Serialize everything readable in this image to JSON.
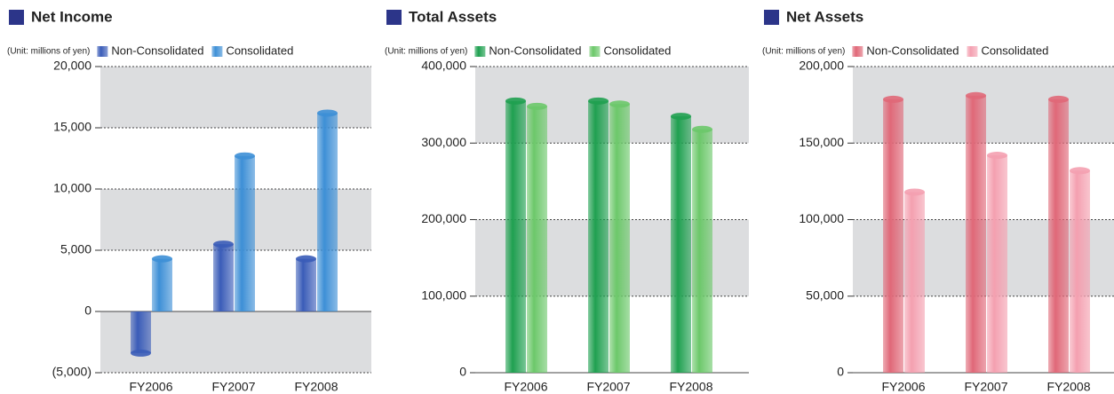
{
  "chart_data": [
    {
      "type": "bar",
      "title": "Net Income",
      "unit_label": "(Unit: millions of yen)",
      "categories": [
        "FY2006",
        "FY2007",
        "FY2008"
      ],
      "series": [
        {
          "name": "Non-Consolidated",
          "color": "#3a5cb8",
          "values": [
            -3400,
            5500,
            4300
          ]
        },
        {
          "name": "Consolidated",
          "color": "#3d8fd6",
          "values": [
            4300,
            12700,
            16200
          ]
        }
      ],
      "ylim": [
        -5000,
        20000
      ],
      "yticks": [
        {
          "value": -5000,
          "label": "(5,000)"
        },
        0,
        {
          "value": 5000,
          "label": "5,000"
        },
        {
          "value": 10000,
          "label": "10,000"
        },
        {
          "value": 15000,
          "label": "15,000"
        },
        {
          "value": 20000,
          "label": "20,000"
        }
      ],
      "grid": true
    },
    {
      "type": "bar",
      "title": "Total Assets",
      "unit_label": "(Unit: millions of yen)",
      "categories": [
        "FY2006",
        "FY2007",
        "FY2008"
      ],
      "series": [
        {
          "name": "Non-Consolidated",
          "color": "#1fa050",
          "values": [
            355000,
            355000,
            335000
          ]
        },
        {
          "name": "Consolidated",
          "color": "#6cc86a",
          "values": [
            348000,
            351000,
            318000
          ]
        }
      ],
      "ylim": [
        0,
        400000
      ],
      "yticks": [
        0,
        {
          "value": 100000,
          "label": "100,000"
        },
        {
          "value": 200000,
          "label": "200,000"
        },
        {
          "value": 300000,
          "label": "300,000"
        },
        {
          "value": 400000,
          "label": "400,000"
        }
      ],
      "grid": true
    },
    {
      "type": "bar",
      "title": "Net Assets",
      "unit_label": "(Unit: millions of yen)",
      "categories": [
        "FY2006",
        "FY2007",
        "FY2008"
      ],
      "series": [
        {
          "name": "Non-Consolidated",
          "color": "#e06878",
          "values": [
            178600,
            181000,
            178600
          ]
        },
        {
          "name": "Consolidated",
          "color": "#f4a0b0",
          "values": [
            118000,
            142000,
            132000
          ]
        }
      ],
      "ylim": [
        0,
        200000
      ],
      "yticks": [
        0,
        {
          "value": 50000,
          "label": "50,000"
        },
        {
          "value": 100000,
          "label": "100,000"
        },
        {
          "value": 150000,
          "label": "150,000"
        },
        {
          "value": 200000,
          "label": "200,000"
        }
      ],
      "grid": true
    }
  ]
}
